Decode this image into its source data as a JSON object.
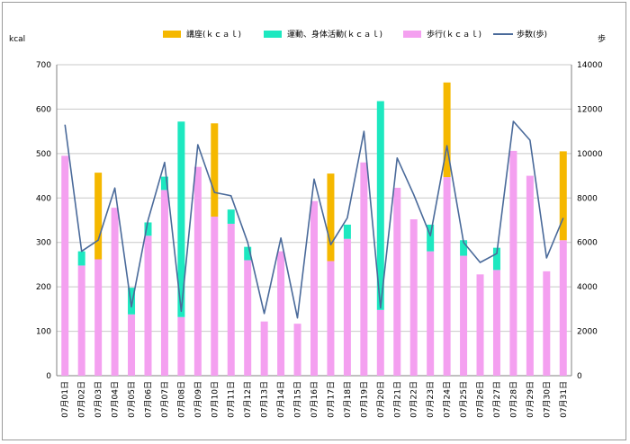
{
  "chart_data": {
    "type": "bar",
    "stacked": true,
    "y_unit_left": "kcal",
    "y_unit_right": "歩",
    "ylim": [
      0,
      700
    ],
    "y2lim": [
      0,
      14000
    ],
    "y_ticks": [
      "0",
      "100",
      "200",
      "300",
      "400",
      "500",
      "600",
      "700"
    ],
    "y2_ticks": [
      "0",
      "2000",
      "4000",
      "6000",
      "8000",
      "10000",
      "12000",
      "14000"
    ],
    "categories": [
      "07月01日",
      "07月02日",
      "07月03日",
      "07月04日",
      "07月05日",
      "07月06日",
      "07月07日",
      "07月08日",
      "07月09日",
      "07月10日",
      "07月11日",
      "07月12日",
      "07月13日",
      "07月14日",
      "07月15日",
      "07月16日",
      "07月17日",
      "07月18日",
      "07月19日",
      "07月20日",
      "07月21日",
      "07月22日",
      "07月23日",
      "07月24日",
      "07月25日",
      "07月26日",
      "07月27日",
      "07月28日",
      "07月29日",
      "07月30日",
      "07月31日"
    ],
    "series": [
      {
        "name": "歩行(ｋｃａｌ)",
        "color": "#f4a0f0",
        "values": [
          495,
          248,
          262,
          378,
          138,
          315,
          418,
          132,
          470,
          358,
          342,
          260,
          122,
          280,
          117,
          393,
          258,
          308,
          480,
          148,
          423,
          352,
          280,
          447,
          270,
          228,
          238,
          506,
          450,
          235,
          305
        ]
      },
      {
        "name": "運動、身体活動(ｋｃａｌ)",
        "color": "#1de8c0",
        "values": [
          0,
          32,
          0,
          0,
          60,
          30,
          30,
          440,
          0,
          0,
          32,
          30,
          0,
          0,
          0,
          0,
          0,
          32,
          0,
          470,
          0,
          0,
          60,
          0,
          35,
          0,
          50,
          0,
          0,
          0,
          0
        ]
      },
      {
        "name": "講座(ｋｃａｌ)",
        "color": "#f5b800",
        "values": [
          0,
          0,
          195,
          0,
          0,
          0,
          0,
          0,
          0,
          210,
          0,
          0,
          0,
          0,
          0,
          0,
          197,
          0,
          0,
          0,
          0,
          0,
          0,
          213,
          0,
          0,
          0,
          0,
          0,
          0,
          200
        ]
      }
    ],
    "line_series": {
      "name": "歩数(歩)",
      "color": "#4a6a9a",
      "axis": "right",
      "values": [
        11300,
        5600,
        6100,
        8450,
        3100,
        7000,
        9600,
        2900,
        10400,
        8250,
        8100,
        6000,
        2800,
        6200,
        2600,
        8850,
        5900,
        7100,
        11000,
        3050,
        9800,
        8150,
        6300,
        10350,
        6000,
        5100,
        5500,
        11450,
        10600,
        5300,
        7100
      ]
    }
  }
}
